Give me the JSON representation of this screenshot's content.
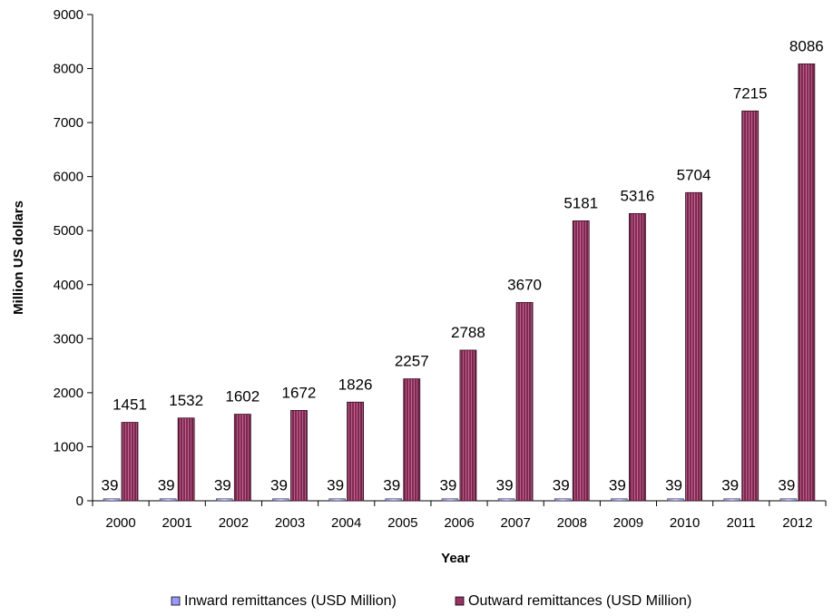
{
  "chart_data": {
    "type": "bar",
    "title": "",
    "xlabel": "Year",
    "ylabel": "Million US dollars",
    "categories": [
      "2000",
      "2001",
      "2002",
      "2003",
      "2004",
      "2005",
      "2006",
      "2007",
      "2008",
      "2009",
      "2010",
      "2011",
      "2012"
    ],
    "series": [
      {
        "name": "Inward remittances (USD Million)",
        "values": [
          39,
          39,
          39,
          39,
          39,
          39,
          39,
          39,
          39,
          39,
          39,
          39,
          39
        ],
        "color": "#9999ff"
      },
      {
        "name": "Outward remittances (USD Million)",
        "values": [
          1451,
          1532,
          1602,
          1672,
          1826,
          2257,
          2788,
          3670,
          5181,
          5316,
          5704,
          7215,
          8086
        ],
        "color": "#993366"
      }
    ],
    "ylim": [
      0,
      9000
    ],
    "yticks": [
      0,
      1000,
      2000,
      3000,
      4000,
      5000,
      6000,
      7000,
      8000,
      9000
    ],
    "grid": false,
    "data_labels": true,
    "legend_position": "bottom"
  }
}
